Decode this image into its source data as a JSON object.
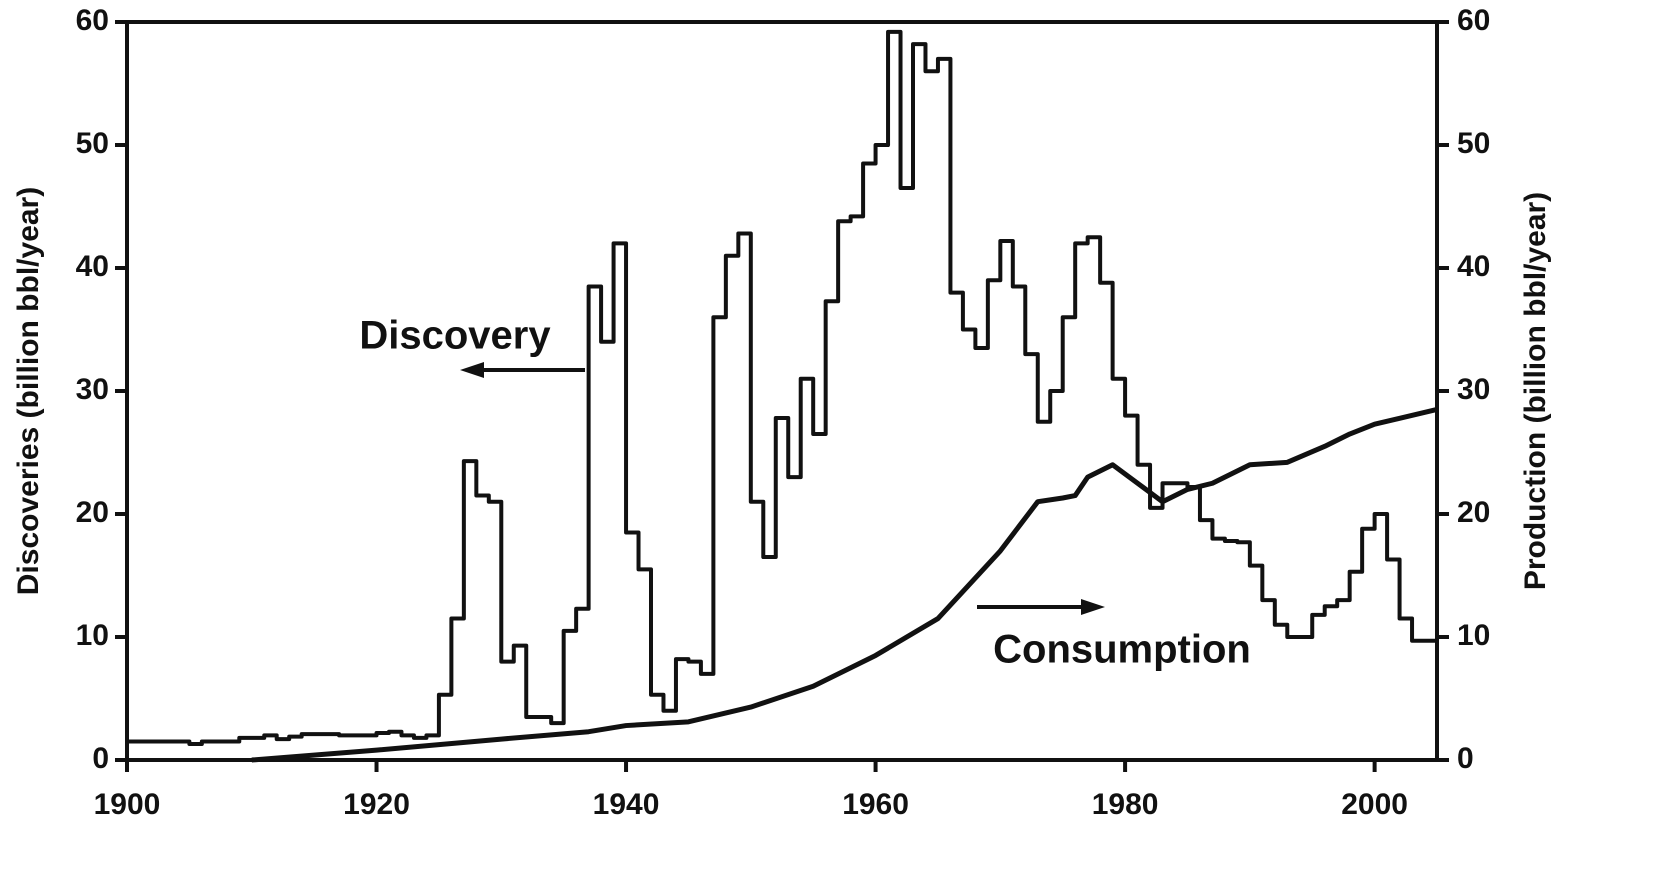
{
  "chart_data": {
    "type": "line",
    "y_label": "Discoveries (billion bbl/year)",
    "y2_label": "Production (billion bbl/year)",
    "annotations": [
      "Discovery",
      "Consumption"
    ],
    "xlim": [
      1900,
      2005
    ],
    "xticks": [
      1900,
      1920,
      1940,
      1960,
      1980,
      2000
    ],
    "ylim": [
      0,
      60
    ],
    "yticks": [
      0,
      10,
      20,
      30,
      40,
      50,
      60
    ],
    "y2lim": [
      0,
      60
    ],
    "y2ticks": [
      0,
      10,
      20,
      30,
      40,
      50,
      60
    ],
    "series": [
      {
        "name": "Discovery",
        "color": "#111111",
        "step": true,
        "x": [
          1900,
          1901,
          1902,
          1903,
          1904,
          1905,
          1906,
          1907,
          1908,
          1909,
          1910,
          1911,
          1912,
          1913,
          1914,
          1915,
          1916,
          1917,
          1918,
          1919,
          1920,
          1921,
          1922,
          1923,
          1924,
          1925,
          1926,
          1927,
          1928,
          1929,
          1930,
          1931,
          1932,
          1933,
          1934,
          1935,
          1936,
          1937,
          1938,
          1939,
          1940,
          1941,
          1942,
          1943,
          1944,
          1945,
          1946,
          1947,
          1948,
          1949,
          1950,
          1951,
          1952,
          1953,
          1954,
          1955,
          1956,
          1957,
          1958,
          1959,
          1960,
          1961,
          1962,
          1963,
          1964,
          1965,
          1966,
          1967,
          1968,
          1969,
          1970,
          1971,
          1972,
          1973,
          1974,
          1975,
          1976,
          1977,
          1978,
          1979,
          1980,
          1981,
          1982,
          1983,
          1984,
          1985,
          1986,
          1987,
          1988,
          1989,
          1990,
          1991,
          1992,
          1993,
          1994,
          1995,
          1996,
          1997,
          1998,
          1999,
          2000,
          2001,
          2002,
          2003,
          2004
        ],
        "values": [
          1.5,
          1.5,
          1.5,
          1.5,
          1.5,
          1.3,
          1.5,
          1.5,
          1.5,
          1.8,
          1.8,
          2.0,
          1.7,
          1.9,
          2.1,
          2.1,
          2.1,
          2.0,
          2.0,
          2.0,
          2.2,
          2.3,
          2.0,
          1.8,
          2.0,
          5.3,
          11.5,
          24.3,
          21.5,
          21.0,
          8.0,
          9.3,
          3.5,
          3.5,
          3.0,
          10.5,
          12.3,
          38.5,
          34.0,
          42.0,
          18.5,
          15.5,
          5.3,
          4.0,
          8.2,
          8.0,
          7.0,
          36.0,
          41.0,
          42.8,
          21.0,
          16.5,
          27.8,
          23.0,
          31.0,
          26.5,
          37.3,
          43.8,
          44.2,
          48.5,
          50.0,
          59.2,
          46.5,
          58.2,
          56.0,
          57.0,
          38.0,
          35.0,
          33.5,
          39.0,
          42.2,
          38.5,
          33.0,
          27.5,
          30.0,
          36.0,
          42.0,
          42.5,
          38.8,
          31.0,
          28.0,
          24.0,
          20.5,
          22.5,
          22.5,
          22.2,
          19.5,
          18.0,
          17.8,
          17.7,
          15.8,
          13.0,
          11.0,
          10.0,
          10.0,
          11.8,
          12.5,
          13.0,
          15.3,
          18.8,
          20.0,
          16.3,
          11.5,
          9.7,
          9.7
        ]
      },
      {
        "name": "Consumption",
        "color": "#111111",
        "axis": "y2",
        "x": [
          1910,
          1920,
          1930,
          1937,
          1940,
          1945,
          1950,
          1955,
          1960,
          1965,
          1970,
          1973,
          1975,
          1976,
          1977,
          1979,
          1981,
          1983,
          1985,
          1987,
          1990,
          1993,
          1996,
          1998,
          2000,
          2005
        ],
        "values": [
          0,
          0.8,
          1.7,
          2.3,
          2.8,
          3.1,
          4.3,
          6.0,
          8.5,
          11.5,
          17.0,
          21.0,
          21.3,
          21.5,
          23.0,
          24.0,
          22.5,
          21.0,
          22.0,
          22.5,
          24.0,
          24.2,
          25.5,
          26.5,
          27.3,
          28.5
        ]
      }
    ]
  }
}
